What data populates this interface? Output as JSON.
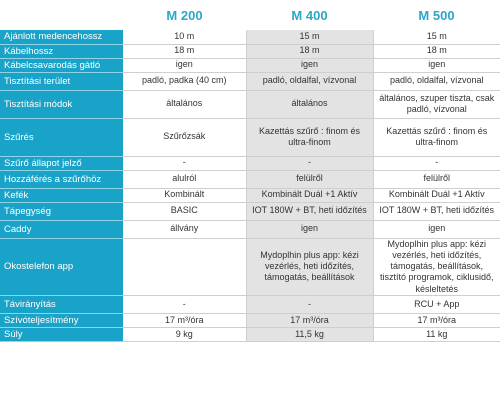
{
  "columns": [
    "M 200",
    "M 400",
    "M 500"
  ],
  "rows": [
    {
      "label": "Ajánlott medencehossz",
      "values": [
        "10 m",
        "15 m",
        "15 m"
      ]
    },
    {
      "label": "Kábelhossz",
      "values": [
        "18 m",
        "18 m",
        "18 m"
      ]
    },
    {
      "label": "Kábelcsavarodás gátló",
      "values": [
        "igen",
        "igen",
        "igen"
      ]
    },
    {
      "label": "Tisztítási terület",
      "values": [
        "padló, padka (40 cm)",
        "padló, oldalfal, vízvonal",
        "padló, oldalfal, vízvonal"
      ]
    },
    {
      "label": "Tisztítási módok",
      "values": [
        "általános",
        "általános",
        "általános, szuper tiszta, csak padló, vízvonal"
      ]
    },
    {
      "label": "Szűrés",
      "values": [
        "Szűrőzsák",
        "Kazettás szűrő : finom és ultra-finom",
        "Kazettás szűrő : finom és ultra-finom"
      ]
    },
    {
      "label": "Szűrő állapot jelző",
      "values": [
        "-",
        "-",
        "-"
      ]
    },
    {
      "label": "Hozzáférés a szűrőhöz",
      "values": [
        "alulról",
        "felülről",
        "felülről"
      ]
    },
    {
      "label": "Kefék",
      "values": [
        "Kombinált",
        "Kombinált Duál +1 Aktív",
        "Kombinált Duál +1 Aktív"
      ]
    },
    {
      "label": "Tápegység",
      "values": [
        "BASIC",
        "IOT 180W + BT, heti időzítés",
        "IOT 180W + BT, heti időzítés"
      ]
    },
    {
      "label": "Caddy",
      "values": [
        "állvány",
        "igen",
        "igen"
      ]
    },
    {
      "label": "Okostelefon app",
      "values": [
        "",
        "Mydoplhin plus app: kézi vezérlés, heti időzítés, támogatás, beállítások",
        "Mydoplhin plus app: kézi vezérlés, heti időzítés, támogatás, beállítások, tisztító programok, ciklusidő, késleltetés"
      ]
    },
    {
      "label": "Távirányítás",
      "values": [
        "-",
        "-",
        "RCU + App"
      ]
    },
    {
      "label": "Szívóteljesítmény",
      "values": [
        "17 m³/óra",
        "17 m³/óra",
        "17 m³/óra"
      ]
    },
    {
      "label": "Súly",
      "values": [
        "9 kg",
        "11,5 kg",
        "11 kg"
      ]
    }
  ]
}
